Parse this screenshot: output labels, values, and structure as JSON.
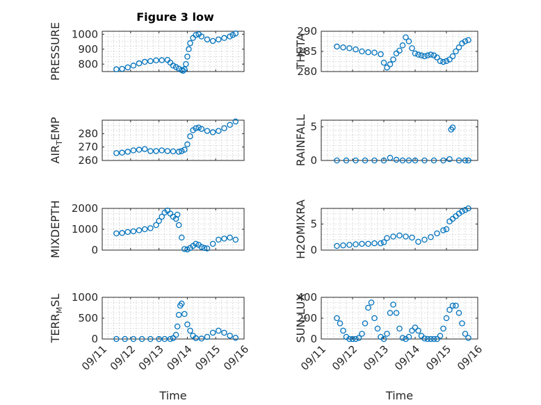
{
  "figure": {
    "title": "Figure 3 low",
    "xlabel": "Time"
  },
  "colors": {
    "marker": "#0072BD",
    "axes": "#262626",
    "grid": "#b0b0b0"
  },
  "chart_data": [
    {
      "type": "scatter",
      "ylabel": "PRESSURE",
      "title": "Figure 3 low",
      "yticks": [
        "800",
        "900",
        "1000"
      ],
      "ytick_values": [
        800,
        900,
        1000
      ],
      "ylim": [
        750,
        1020
      ],
      "xlim": [
        0,
        5
      ],
      "xticks": [],
      "xlabel": "",
      "x": [
        0.5,
        0.7,
        0.9,
        1.1,
        1.3,
        1.5,
        1.7,
        1.9,
        2.1,
        2.3,
        2.4,
        2.5,
        2.6,
        2.7,
        2.8,
        2.85,
        2.9,
        2.95,
        3.0,
        3.05,
        3.1,
        3.2,
        3.3,
        3.4,
        3.5,
        3.7,
        3.9,
        4.1,
        4.3,
        4.5,
        4.6,
        4.7
      ],
      "y": [
        765,
        768,
        778,
        790,
        805,
        815,
        820,
        825,
        826,
        828,
        810,
        790,
        780,
        770,
        760,
        755,
        765,
        800,
        850,
        900,
        940,
        975,
        995,
        1000,
        985,
        965,
        955,
        965,
        975,
        985,
        995,
        1005
      ]
    },
    {
      "type": "scatter",
      "ylabel": "THETA",
      "yticks": [
        "280",
        "285",
        "290"
      ],
      "ytick_values": [
        280,
        285,
        290
      ],
      "ylim": [
        280,
        290
      ],
      "xlim": [
        0,
        5
      ],
      "xticks": [],
      "xlabel": "",
      "x": [
        0.5,
        0.7,
        0.9,
        1.1,
        1.3,
        1.5,
        1.7,
        1.9,
        2.0,
        2.1,
        2.2,
        2.3,
        2.4,
        2.5,
        2.6,
        2.7,
        2.8,
        2.9,
        3.0,
        3.1,
        3.2,
        3.3,
        3.4,
        3.5,
        3.6,
        3.7,
        3.8,
        3.9,
        4.0,
        4.1,
        4.2,
        4.3,
        4.4,
        4.5,
        4.6,
        4.7
      ],
      "y": [
        286.2,
        286.0,
        285.8,
        285.5,
        285.0,
        284.8,
        284.7,
        284.3,
        282.2,
        281.0,
        281.8,
        283.0,
        284.5,
        285.2,
        286.5,
        288.5,
        287.5,
        285.8,
        284.5,
        284.2,
        284.0,
        283.8,
        284.0,
        284.2,
        284.0,
        283.5,
        282.6,
        282.4,
        282.6,
        283.0,
        283.8,
        285.0,
        286.0,
        287.0,
        287.5,
        287.8
      ]
    },
    {
      "type": "scatter",
      "ylabel": "AIR_TEMP",
      "yticks": [
        "260",
        "270",
        "280"
      ],
      "ytick_values": [
        260,
        270,
        280
      ],
      "ylim": [
        260,
        290
      ],
      "xlim": [
        0,
        5
      ],
      "xticks": [],
      "xlabel": "",
      "x": [
        0.5,
        0.7,
        0.9,
        1.1,
        1.3,
        1.5,
        1.7,
        1.9,
        2.1,
        2.3,
        2.5,
        2.7,
        2.8,
        2.9,
        3.0,
        3.1,
        3.2,
        3.3,
        3.4,
        3.5,
        3.7,
        3.9,
        4.1,
        4.3,
        4.5,
        4.7
      ],
      "y": [
        265.5,
        265.8,
        266.5,
        267.5,
        268.0,
        268.5,
        267.0,
        267.0,
        267.5,
        267.0,
        266.8,
        266.5,
        267.0,
        268.0,
        272.0,
        278.0,
        282.5,
        284.0,
        284.5,
        283.5,
        282.0,
        281.0,
        282.0,
        284.0,
        286.5,
        289.0
      ]
    },
    {
      "type": "scatter",
      "ylabel": "RAINFALL",
      "yticks": [
        "0",
        "5"
      ],
      "ytick_values": [
        0,
        5
      ],
      "ylim": [
        0,
        6
      ],
      "xlim": [
        0,
        5
      ],
      "xticks": [],
      "xlabel": "",
      "x": [
        0.5,
        0.8,
        1.1,
        1.4,
        1.7,
        2.0,
        2.2,
        2.4,
        2.6,
        2.8,
        3.0,
        3.3,
        3.6,
        3.9,
        4.1,
        4.15,
        4.2,
        4.4,
        4.6,
        4.7
      ],
      "y": [
        0,
        0,
        0,
        0,
        0,
        0,
        0.4,
        0.1,
        0,
        0,
        0,
        0,
        0,
        0,
        0.2,
        4.6,
        4.9,
        0,
        0,
        0
      ]
    },
    {
      "type": "scatter",
      "ylabel": "MIXDEPTH",
      "yticks": [
        "0",
        "1000",
        "2000"
      ],
      "ytick_values": [
        0,
        1000,
        2000
      ],
      "ylim": [
        0,
        2000
      ],
      "xlim": [
        0,
        5
      ],
      "xticks": [],
      "xlabel": "",
      "x": [
        0.5,
        0.7,
        0.9,
        1.1,
        1.3,
        1.5,
        1.7,
        1.9,
        2.0,
        2.1,
        2.2,
        2.3,
        2.4,
        2.5,
        2.6,
        2.65,
        2.7,
        2.8,
        2.9,
        3.0,
        3.1,
        3.2,
        3.3,
        3.4,
        3.5,
        3.6,
        3.7,
        3.9,
        4.1,
        4.3,
        4.5,
        4.7
      ],
      "y": [
        800,
        820,
        870,
        900,
        950,
        1000,
        1050,
        1200,
        1400,
        1600,
        1800,
        1900,
        1750,
        1600,
        1500,
        1700,
        1200,
        600,
        50,
        30,
        100,
        200,
        300,
        250,
        150,
        100,
        80,
        300,
        500,
        550,
        600,
        500
      ]
    },
    {
      "type": "scatter",
      "ylabel": "H2OMIXRA",
      "yticks": [
        "0",
        "5"
      ],
      "ytick_values": [
        0,
        5
      ],
      "ylim": [
        0,
        8
      ],
      "xlim": [
        0,
        5
      ],
      "xticks": [],
      "xlabel": "",
      "x": [
        0.5,
        0.7,
        0.9,
        1.1,
        1.3,
        1.5,
        1.7,
        1.9,
        2.0,
        2.1,
        2.3,
        2.5,
        2.7,
        2.9,
        3.1,
        3.3,
        3.5,
        3.7,
        3.9,
        4.0,
        4.1,
        4.2,
        4.3,
        4.4,
        4.5,
        4.6,
        4.7
      ],
      "y": [
        0.8,
        0.9,
        1.0,
        1.1,
        1.2,
        1.2,
        1.3,
        1.3,
        1.5,
        2.3,
        2.6,
        2.8,
        2.6,
        2.4,
        1.6,
        2.0,
        2.5,
        3.2,
        3.8,
        4.0,
        5.5,
        6.0,
        6.5,
        7.0,
        7.4,
        7.7,
        8.0
      ]
    },
    {
      "type": "scatter",
      "ylabel": "TERR_MSL",
      "yticks": [
        "0",
        "500",
        "1000"
      ],
      "ytick_values": [
        0,
        500,
        1000
      ],
      "ylim": [
        0,
        1000
      ],
      "xlim": [
        0,
        5
      ],
      "xticks": [
        "09/11",
        "09/12",
        "09/13",
        "09/14",
        "09/15",
        "09/16"
      ],
      "xtick_values": [
        0,
        1,
        2,
        3,
        4,
        5
      ],
      "xlabel": "Time",
      "x": [
        0.5,
        0.8,
        1.1,
        1.4,
        1.7,
        2.0,
        2.2,
        2.4,
        2.5,
        2.6,
        2.65,
        2.7,
        2.75,
        2.8,
        2.9,
        3.0,
        3.1,
        3.2,
        3.3,
        3.5,
        3.7,
        3.9,
        4.1,
        4.3,
        4.5,
        4.7
      ],
      "y": [
        0,
        0,
        0,
        0,
        0,
        0,
        0,
        0,
        20,
        100,
        300,
        580,
        800,
        850,
        600,
        350,
        200,
        80,
        20,
        10,
        50,
        150,
        200,
        150,
        80,
        30
      ]
    },
    {
      "type": "scatter",
      "ylabel": "SUN_FLUX",
      "yticks": [
        "0",
        "200",
        "400"
      ],
      "ytick_values": [
        0,
        200,
        400
      ],
      "ylim": [
        0,
        400
      ],
      "xlim": [
        0,
        5
      ],
      "xticks": [
        "09/11",
        "09/12",
        "09/13",
        "09/14",
        "09/15",
        "09/16"
      ],
      "xtick_values": [
        0,
        1,
        2,
        3,
        4,
        5
      ],
      "xlabel": "Time",
      "x": [
        0.5,
        0.6,
        0.7,
        0.8,
        0.9,
        1.0,
        1.1,
        1.2,
        1.3,
        1.4,
        1.5,
        1.6,
        1.7,
        1.8,
        1.9,
        2.0,
        2.1,
        2.2,
        2.3,
        2.4,
        2.5,
        2.6,
        2.7,
        2.8,
        2.9,
        3.0,
        3.1,
        3.2,
        3.3,
        3.4,
        3.5,
        3.6,
        3.7,
        3.8,
        3.9,
        4.0,
        4.1,
        4.2,
        4.3,
        4.4,
        4.5,
        4.6,
        4.7
      ],
      "y": [
        200,
        150,
        80,
        20,
        0,
        0,
        0,
        10,
        50,
        150,
        300,
        350,
        200,
        100,
        20,
        0,
        50,
        250,
        330,
        250,
        100,
        10,
        0,
        20,
        80,
        110,
        80,
        30,
        5,
        0,
        0,
        0,
        0,
        30,
        100,
        200,
        280,
        320,
        320,
        250,
        150,
        50,
        10
      ]
    }
  ]
}
